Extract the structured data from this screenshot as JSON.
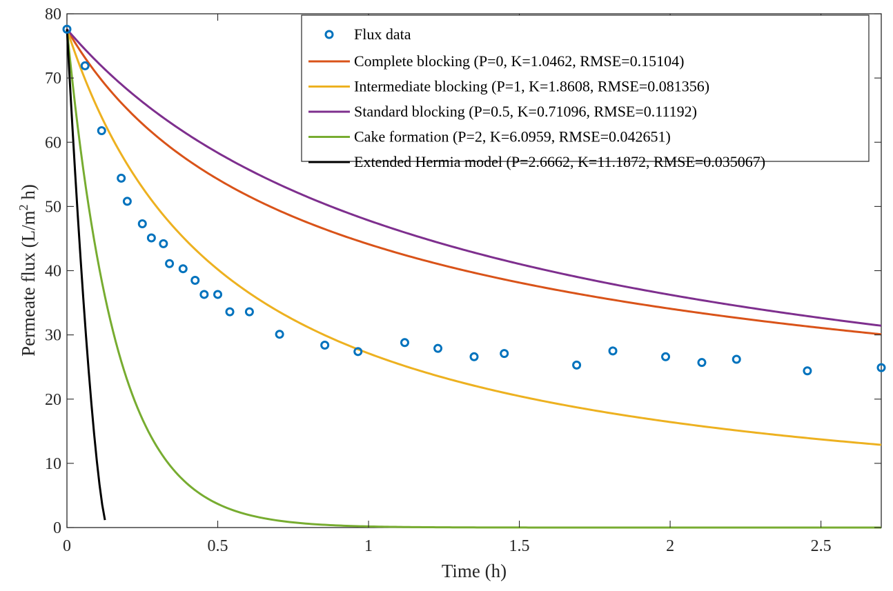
{
  "chart_data": {
    "type": "line",
    "xlabel": "Time (h)",
    "ylabel": {
      "main": "Permeate flux (L/m",
      "sup": "2",
      "tail": " h)"
    },
    "xlim": [
      0,
      2.7
    ],
    "ylim": [
      0,
      80
    ],
    "xticks": [
      0,
      0.5,
      1,
      1.5,
      2,
      2.5
    ],
    "xtick_labels": [
      "0",
      "0.5",
      "1",
      "1.5",
      "2",
      "2.5"
    ],
    "yticks": [
      0,
      10,
      20,
      30,
      40,
      50,
      60,
      70,
      80
    ],
    "ytick_labels": [
      "0",
      "10",
      "20",
      "30",
      "40",
      "50",
      "60",
      "70",
      "80"
    ],
    "grid": false,
    "legend_position": "top-right",
    "scatter": {
      "name": "Flux data",
      "color": "#0072BD",
      "points": [
        [
          0,
          77.6
        ],
        [
          0.06,
          71.9
        ],
        [
          0.115,
          61.8
        ],
        [
          0.18,
          54.4
        ],
        [
          0.2,
          50.8
        ],
        [
          0.25,
          47.3
        ],
        [
          0.28,
          45.1
        ],
        [
          0.32,
          44.2
        ],
        [
          0.34,
          41.1
        ],
        [
          0.385,
          40.3
        ],
        [
          0.425,
          38.5
        ],
        [
          0.455,
          36.3
        ],
        [
          0.5,
          36.3
        ],
        [
          0.54,
          33.6
        ],
        [
          0.605,
          33.6
        ],
        [
          0.705,
          30.1
        ],
        [
          0.855,
          28.4
        ],
        [
          0.965,
          27.4
        ],
        [
          1.12,
          28.8
        ],
        [
          1.23,
          27.9
        ],
        [
          1.35,
          26.6
        ],
        [
          1.45,
          27.1
        ],
        [
          1.69,
          25.3
        ],
        [
          1.81,
          27.5
        ],
        [
          1.985,
          26.6
        ],
        [
          2.105,
          25.7
        ],
        [
          2.22,
          26.2
        ],
        [
          2.455,
          24.4
        ],
        [
          2.7,
          24.9
        ]
      ]
    },
    "series": [
      {
        "name": "Complete blocking (P=0, K=1.0462, RMSE=0.15104)",
        "color": "#D95319",
        "P": 0,
        "K": 1.0462
      },
      {
        "name": "Intermediate blocking (P=1, K=1.8608, RMSE=0.081356)",
        "color": "#EDB120",
        "P": 1,
        "K": 1.8608
      },
      {
        "name": "Standard blocking (P=0.5, K=0.71096, RMSE=0.11192)",
        "color": "#7E2F8E",
        "P": 0.5,
        "K": 0.71096
      },
      {
        "name": "Cake formation (P=2, K=6.0959, RMSE=0.042651)",
        "color": "#77AC30",
        "P": 2,
        "K": 6.0959
      },
      {
        "name": "Extended Hermia model (P=2.6662, K=11.1872, RMSE=0.035067)",
        "color": "#000000",
        "P": 2.6662,
        "K": 11.1872
      }
    ],
    "initial_flux": 77.6
  }
}
